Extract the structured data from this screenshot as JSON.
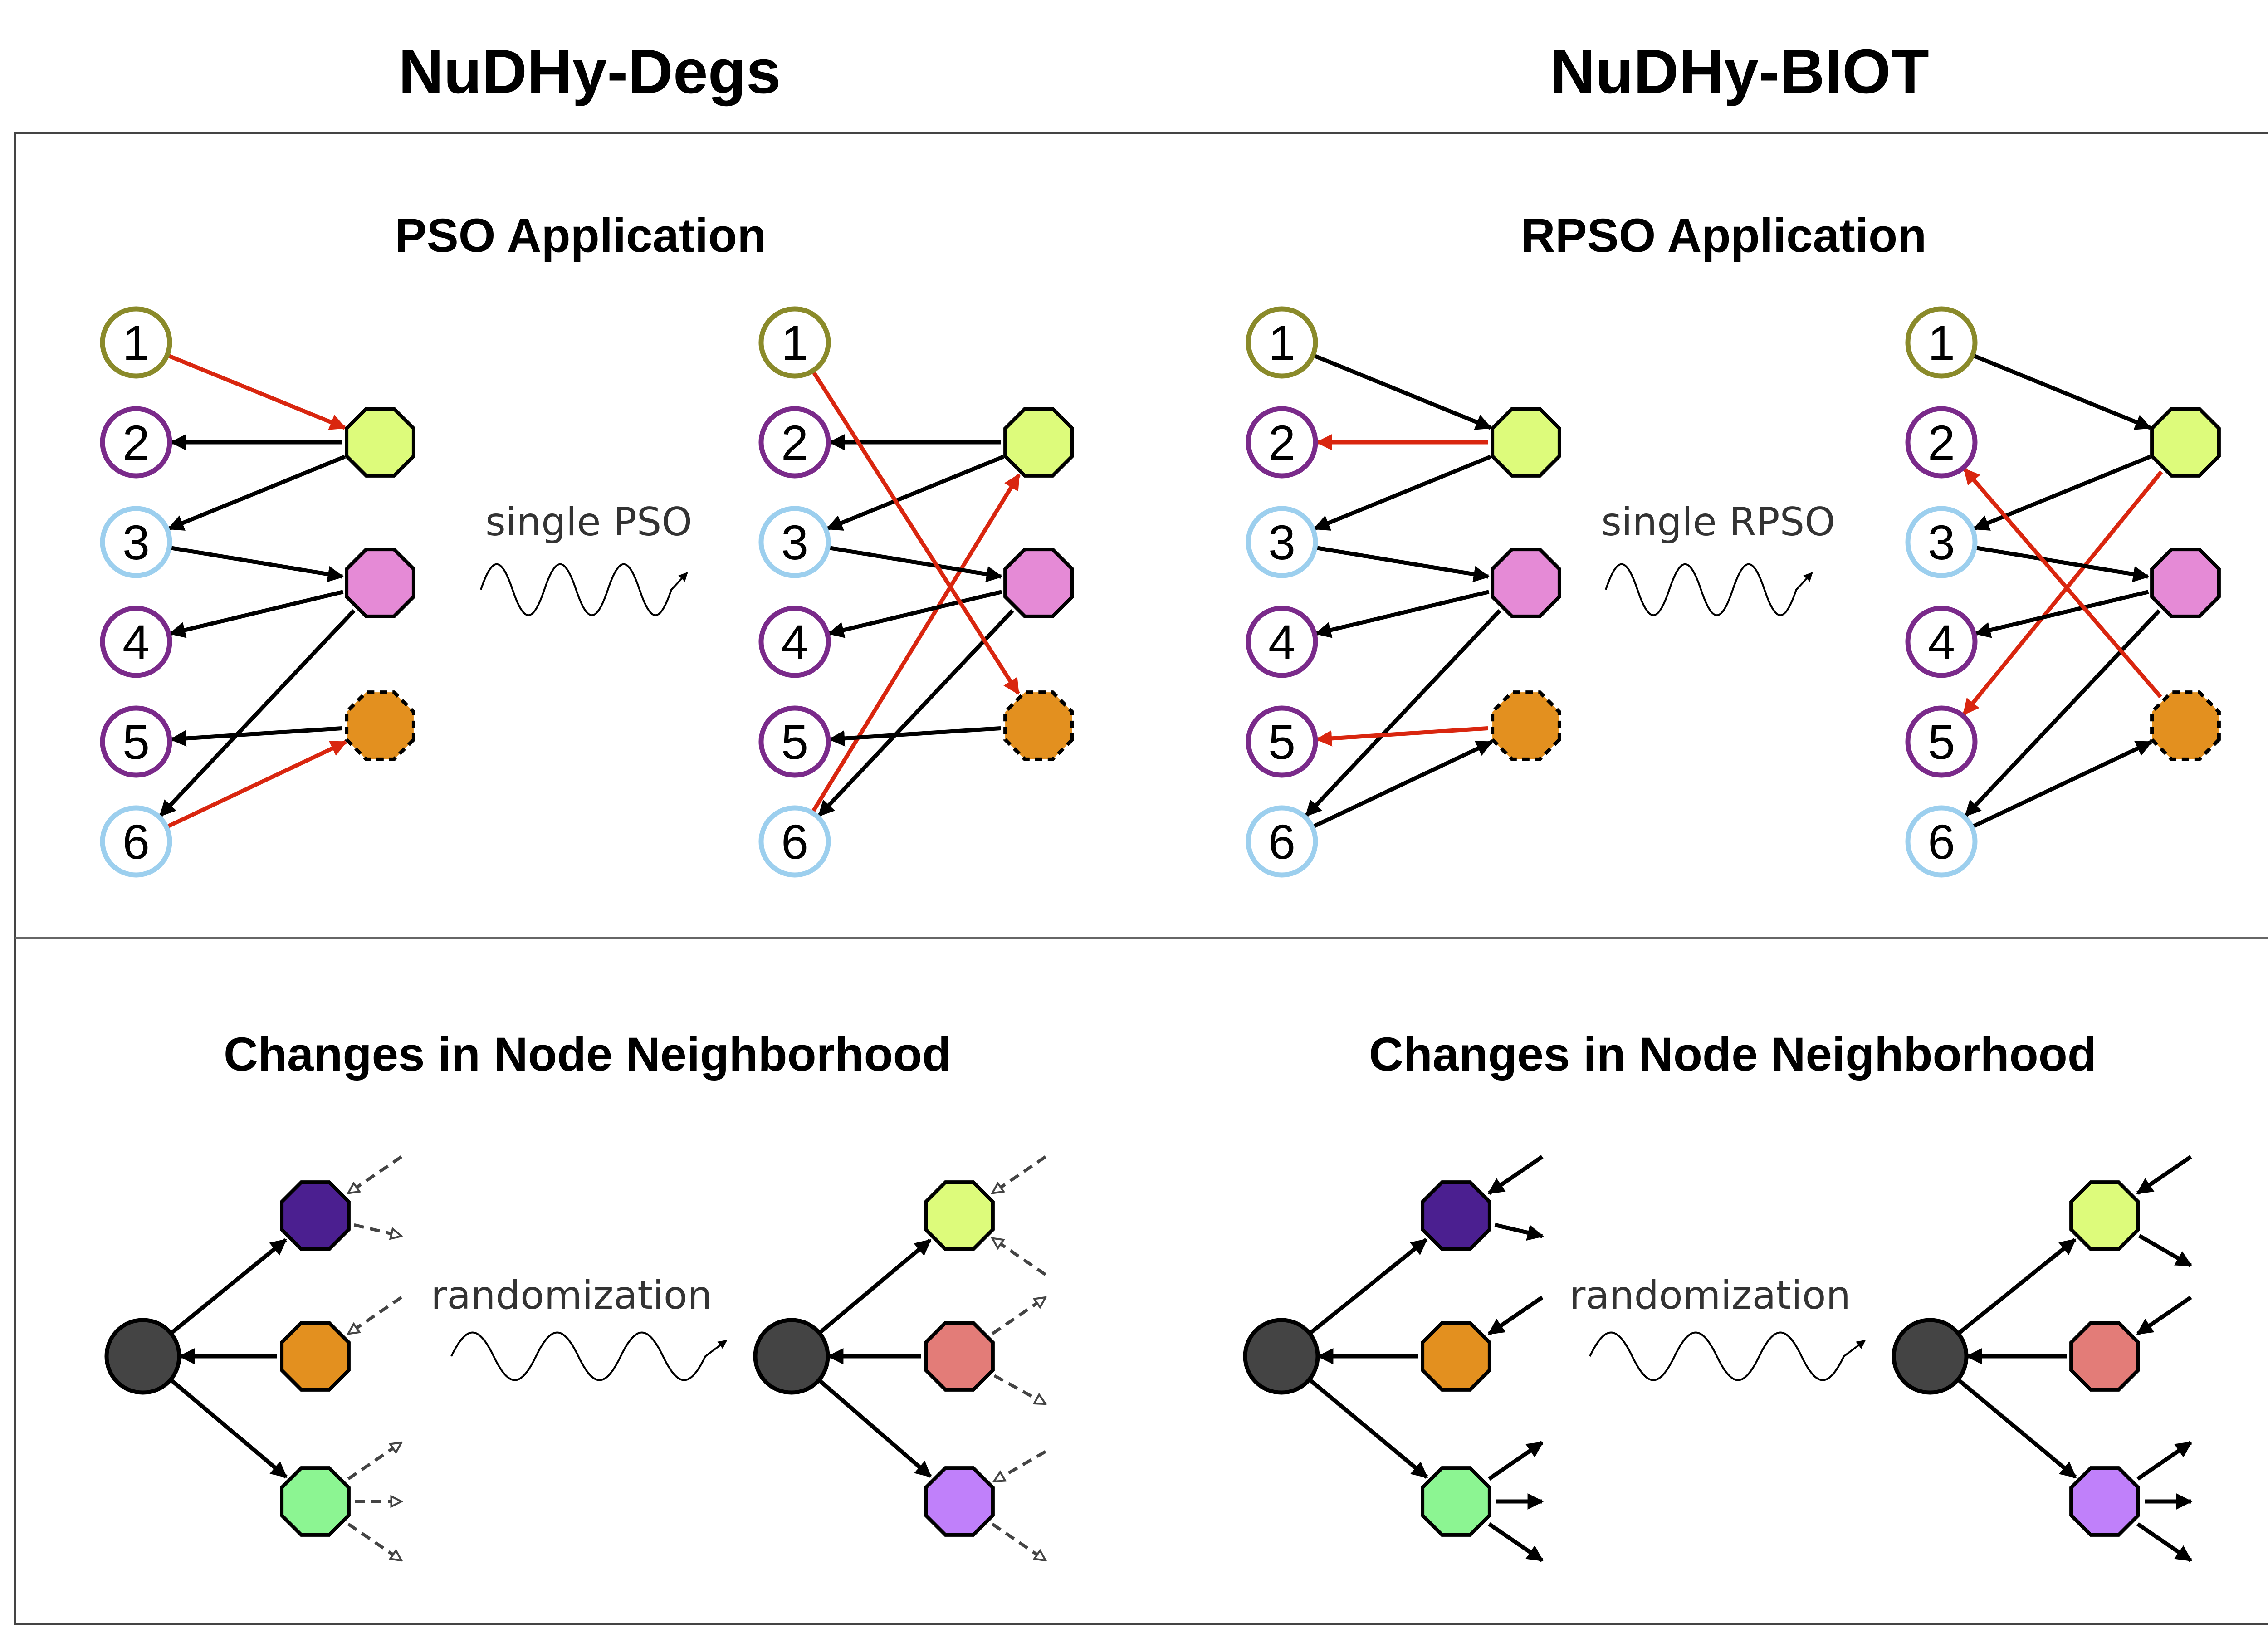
{
  "titles": {
    "left_column": "NuDHy-Degs",
    "right_column": "NuDHy-BIOT"
  },
  "top_panel": {
    "left_title": "PSO Application",
    "right_title": "RPSO Application",
    "left_operation": "single PSO",
    "right_operation": "single RPSO",
    "node_labels": [
      "1",
      "2",
      "3",
      "4",
      "5",
      "6"
    ]
  },
  "bottom_panel": {
    "left_title": "Changes in Node Neighborhood",
    "right_title": "Changes in Node Neighborhood",
    "operation": "randomization"
  },
  "colors": {
    "node_outline": [
      "#8a8a2a",
      "#7a2a8a",
      "#9ccfee"
    ],
    "hyperedges": [
      "#ddfb7b",
      "#e58ad6",
      "#e3901f"
    ],
    "neighborhood": [
      "#4b1f90",
      "#e3901f",
      "#8cf592",
      "#e37c78",
      "#c080fa"
    ],
    "swapped_edge": "#d9260f",
    "center_node": "#444444"
  },
  "icons": {
    "operation": "squiggle-arrow-icon"
  }
}
